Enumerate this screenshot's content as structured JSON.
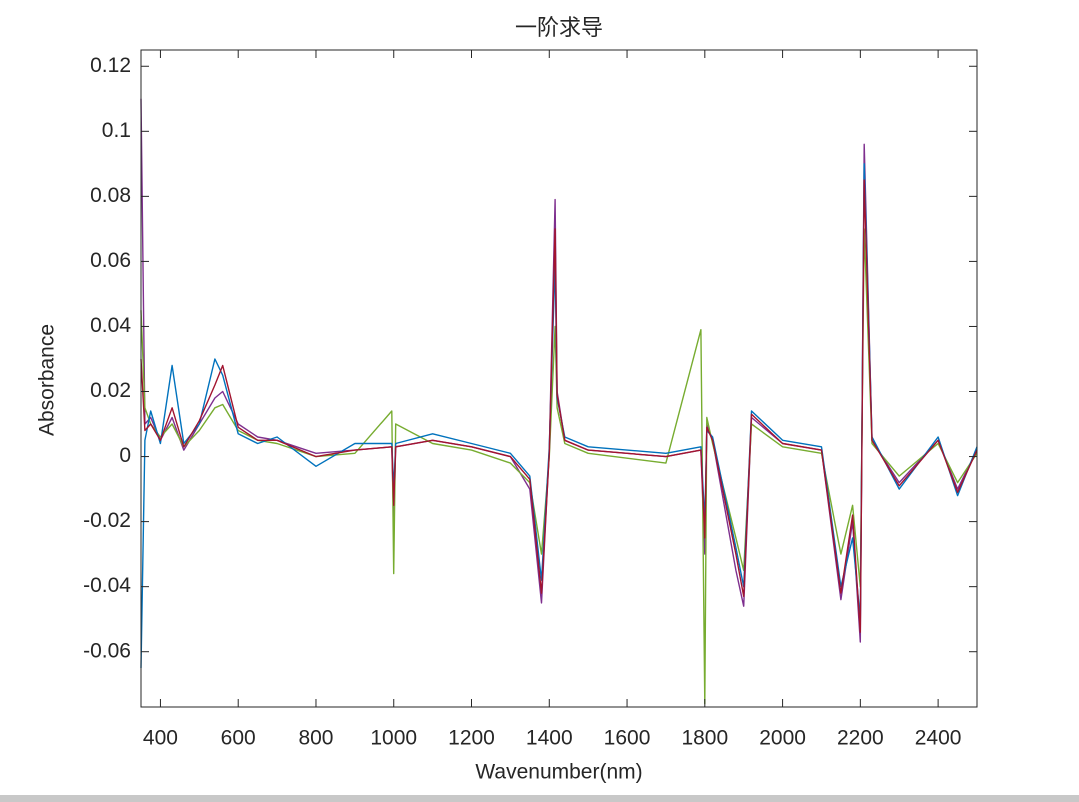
{
  "chart_data": {
    "type": "line",
    "title": "一阶求导",
    "x_label": "Wavenumber(nm)",
    "y_label": "Absorbance",
    "x": [
      350,
      360,
      375,
      400,
      430,
      460,
      500,
      540,
      560,
      600,
      650,
      700,
      800,
      900,
      995,
      1000,
      1005,
      1100,
      1200,
      1300,
      1350,
      1380,
      1400,
      1415,
      1420,
      1440,
      1500,
      1700,
      1790,
      1800,
      1805,
      1820,
      1880,
      1900,
      1920,
      2000,
      2100,
      2150,
      2180,
      2200,
      2210,
      2230,
      2300,
      2400,
      2450,
      2500
    ],
    "series": [
      {
        "color": "#7E2F8E",
        "values": [
          0.11,
          0.01,
          0.012,
          0.005,
          0.012,
          0.002,
          0.01,
          0.018,
          0.02,
          0.01,
          0.006,
          0.005,
          0.001,
          0.002,
          0.003,
          -0.02,
          0.003,
          0.005,
          0.003,
          0.0,
          -0.01,
          -0.045,
          0.002,
          0.079,
          0.02,
          0.005,
          0.002,
          0.0,
          0.002,
          -0.03,
          0.01,
          0.005,
          -0.035,
          -0.046,
          0.012,
          0.004,
          0.002,
          -0.044,
          -0.02,
          -0.057,
          0.096,
          0.005,
          -0.008,
          0.005,
          -0.01,
          0.002
        ]
      },
      {
        "color": "#77AC30",
        "values": [
          0.045,
          0.015,
          0.01,
          0.006,
          0.01,
          0.003,
          0.008,
          0.015,
          0.016,
          0.008,
          0.005,
          0.004,
          0.0,
          0.001,
          0.014,
          -0.036,
          0.01,
          0.004,
          0.002,
          -0.002,
          -0.008,
          -0.03,
          0.0,
          0.04,
          0.015,
          0.004,
          0.001,
          -0.002,
          0.039,
          -0.076,
          0.012,
          0.004,
          -0.025,
          -0.035,
          0.01,
          0.003,
          0.001,
          -0.03,
          -0.015,
          -0.04,
          0.07,
          0.004,
          -0.006,
          0.004,
          -0.008,
          0.001
        ]
      },
      {
        "color": "#0072BD",
        "values": [
          -0.065,
          0.005,
          0.014,
          0.004,
          0.028,
          0.004,
          0.01,
          0.03,
          0.025,
          0.007,
          0.004,
          0.006,
          -0.003,
          0.004,
          0.004,
          -0.01,
          0.004,
          0.007,
          0.004,
          0.001,
          -0.006,
          -0.038,
          0.003,
          0.06,
          0.018,
          0.006,
          0.003,
          0.001,
          0.003,
          -0.02,
          0.008,
          0.006,
          -0.028,
          -0.04,
          0.014,
          0.005,
          0.003,
          -0.04,
          -0.025,
          -0.05,
          0.09,
          0.006,
          -0.01,
          0.006,
          -0.012,
          0.003
        ]
      },
      {
        "color": "#A2142F",
        "values": [
          0.03,
          0.008,
          0.01,
          0.005,
          0.015,
          0.003,
          0.011,
          0.022,
          0.028,
          0.009,
          0.005,
          0.005,
          0.0,
          0.002,
          0.003,
          -0.015,
          0.003,
          0.005,
          0.003,
          0.0,
          -0.007,
          -0.042,
          0.001,
          0.07,
          0.019,
          0.005,
          0.002,
          0.0,
          0.002,
          -0.025,
          0.009,
          0.005,
          -0.03,
          -0.043,
          0.013,
          0.004,
          0.002,
          -0.042,
          -0.018,
          -0.054,
          0.085,
          0.005,
          -0.009,
          0.005,
          -0.011,
          0.002
        ]
      }
    ],
    "xlim": [
      350,
      2500
    ],
    "xticks": [
      400,
      600,
      800,
      1000,
      1200,
      1400,
      1600,
      1800,
      2000,
      2200,
      2400
    ],
    "ylim": [
      -0.077,
      0.125
    ],
    "yticks": [
      -0.06,
      -0.04,
      -0.02,
      0,
      0.02,
      0.04,
      0.06,
      0.08,
      0.1,
      0.12
    ]
  }
}
